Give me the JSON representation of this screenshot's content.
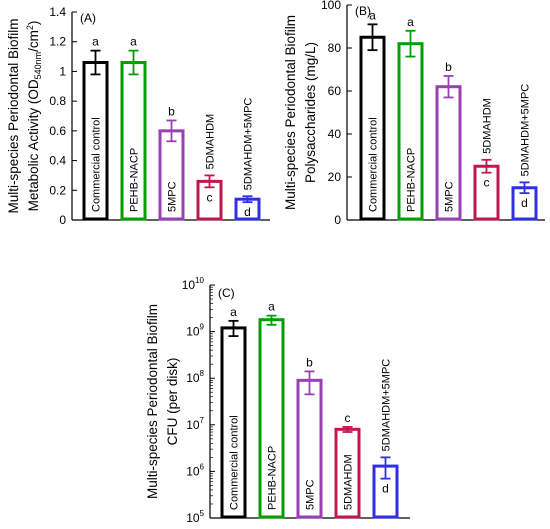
{
  "chart_data": [
    {
      "type": "bar",
      "panel_label": "(A)",
      "ylabel_lines": [
        "Multi-species Periodontal Biofilm",
        "Metabolic Activity (OD",
        "540nm",
        "/cm",
        "2",
        ")"
      ],
      "ylim": [
        0,
        1.4
      ],
      "yticks": [
        "0",
        "0.2",
        "0.4",
        "0.6",
        "0.8",
        "1",
        "1.2",
        "1.4"
      ],
      "categories": [
        "Commercial control",
        "PEHB-NACP",
        "5MPC",
        "5DMAHDM",
        "5DMAHDM+5MPC"
      ],
      "values": [
        1.06,
        1.06,
        0.6,
        0.26,
        0.14
      ],
      "errors": [
        0.08,
        0.08,
        0.07,
        0.04,
        0.02
      ],
      "letters": [
        "a",
        "a",
        "b",
        "c",
        "d"
      ]
    },
    {
      "type": "bar",
      "panel_label": "(B)",
      "ylabel_lines": [
        "Multi-species Periodontal Biofilm",
        "Polysaccharides (mg/L)"
      ],
      "ylim": [
        0,
        100
      ],
      "yticks": [
        "0",
        "20",
        "40",
        "60",
        "80",
        "100"
      ],
      "categories": [
        "Commercial control",
        "PEHB-NACP",
        "5MPC",
        "5DMAHDM",
        "5DMAHDM+5MPC"
      ],
      "values": [
        85,
        82,
        62,
        25,
        15
      ],
      "errors": [
        6,
        6,
        5,
        3,
        2.5
      ],
      "letters": [
        "a",
        "a",
        "b",
        "c",
        "d"
      ]
    },
    {
      "type": "bar",
      "scale": "log",
      "panel_label": "(C)",
      "ylabel_lines": [
        "Multi-species Periodontal Biofilm",
        "CFU (per disk)"
      ],
      "ylim": [
        100000,
        10000000000
      ],
      "yticks": [
        {
          "base": "10",
          "exp": "5"
        },
        {
          "base": "10",
          "exp": "6"
        },
        {
          "base": "10",
          "exp": "7"
        },
        {
          "base": "10",
          "exp": "8"
        },
        {
          "base": "10",
          "exp": "9"
        },
        {
          "base": "10",
          "exp": "10"
        }
      ],
      "categories": [
        "Commercial control",
        "PEHB-NACP",
        "5MPC",
        "5DMAHDM",
        "5DMAHDM+5MPC"
      ],
      "values": [
        1200000000,
        1800000000,
        90000000,
        8000000,
        1300000
      ],
      "error_low": [
        800000000,
        1400000000,
        45000000,
        7000000,
        700000
      ],
      "error_high": [
        1700000000,
        2200000000,
        140000000,
        9000000,
        2000000
      ],
      "letters": [
        "a",
        "a",
        "b",
        "c",
        "d"
      ]
    }
  ],
  "bar_colors": [
    "#000000",
    "#00a000",
    "#9b3fb5",
    "#c0174f",
    "#3030e0"
  ]
}
